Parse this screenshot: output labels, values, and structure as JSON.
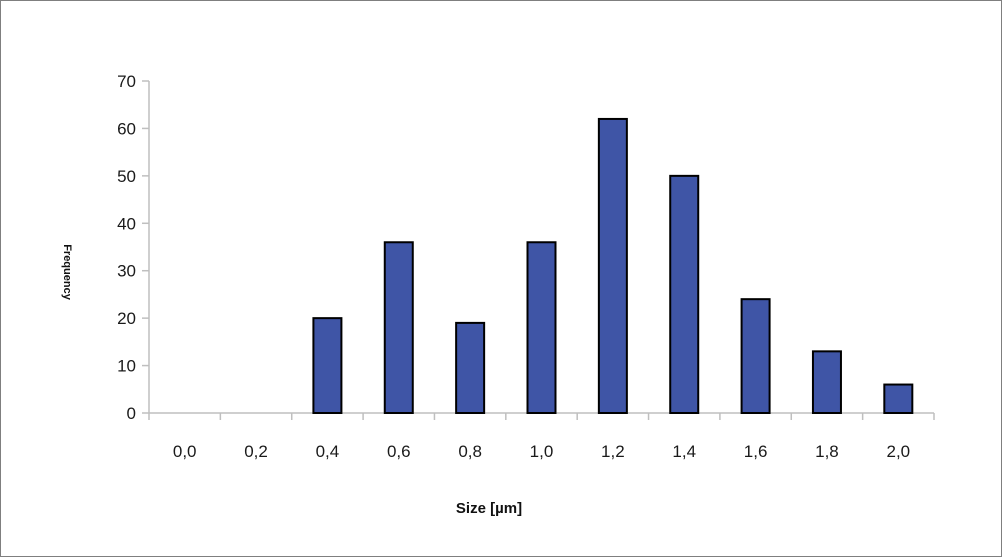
{
  "chart_data": {
    "type": "bar",
    "categories": [
      "0,0",
      "0,2",
      "0,4",
      "0,6",
      "0,8",
      "1,0",
      "1,2",
      "1,4",
      "1,6",
      "1,8",
      "2,0"
    ],
    "values": [
      0,
      0,
      20,
      36,
      19,
      36,
      62,
      50,
      24,
      13,
      6
    ],
    "title": "",
    "xlabel": "Size [µm]",
    "ylabel": "Frequency",
    "ylim": [
      0,
      70
    ],
    "yticks": [
      0,
      10,
      20,
      30,
      40,
      50,
      60,
      70
    ],
    "grid": false,
    "legend": "none",
    "colors": {
      "bar_fill": "#3f55a6",
      "bar_stroke": "#000000",
      "axis": "#bfbfbf",
      "text": "#1a1a1a"
    }
  }
}
